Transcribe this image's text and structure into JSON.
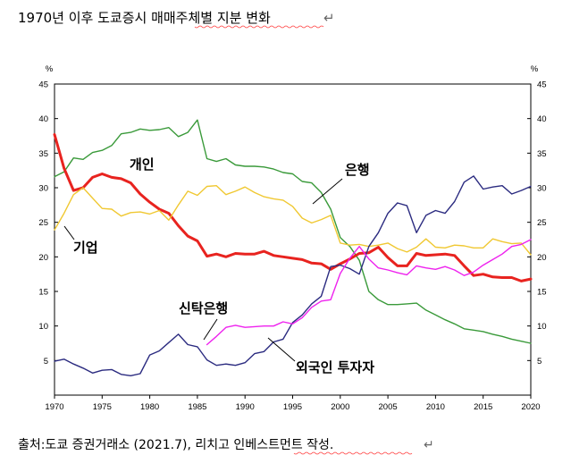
{
  "title": "1970년 이후 도쿄증시 매매주체별 지분 변화",
  "title_mark": "↵",
  "source": "출처:도쿄 증권거래소 (2021.7), 리치고 인베스트먼트 작성.",
  "source_mark": "↵",
  "chart_data": {
    "type": "line",
    "title": "1970년 이후 도쿄증시 매매주체별 지분 변화",
    "xlabel": "",
    "ylabel": "%",
    "y_unit_left": "%",
    "y_unit_right": "%",
    "xlim": [
      1970,
      2020
    ],
    "ylim": [
      0,
      45
    ],
    "x_ticks": [
      1970,
      1975,
      1980,
      1985,
      1990,
      1995,
      2000,
      2005,
      2010,
      2015,
      2020
    ],
    "y_ticks_left": [
      5,
      10,
      15,
      20,
      25,
      30,
      35,
      40,
      45
    ],
    "y_ticks_right": [
      5,
      10,
      15,
      20,
      25,
      30,
      35,
      40,
      45
    ],
    "series": [
      {
        "name": "은행",
        "color": "#3a9a3a",
        "width": 1.4,
        "x": [
          1970,
          1971,
          1972,
          1973,
          1974,
          1975,
          1976,
          1977,
          1978,
          1979,
          1980,
          1981,
          1982,
          1983,
          1984,
          1985,
          1986,
          1987,
          1988,
          1989,
          1990,
          1991,
          1992,
          1993,
          1994,
          1995,
          1996,
          1997,
          1998,
          1999,
          2000,
          2001,
          2002,
          2003,
          2004,
          2005,
          2006,
          2007,
          2008,
          2009,
          2010,
          2011,
          2012,
          2013,
          2014,
          2015,
          2016,
          2017,
          2018,
          2019,
          2020
        ],
        "values": [
          31.6,
          32.3,
          34.3,
          34.1,
          35.1,
          35.4,
          36.1,
          37.8,
          38.0,
          38.5,
          38.3,
          38.4,
          38.7,
          37.4,
          38.0,
          39.8,
          34.2,
          33.8,
          34.2,
          33.3,
          33.1,
          33.1,
          33.0,
          32.7,
          32.2,
          32.0,
          30.9,
          30.7,
          29.3,
          26.9,
          22.8,
          21.5,
          19.5,
          15.0,
          13.8,
          13.1,
          13.1,
          13.2,
          13.3,
          12.3,
          11.6,
          10.9,
          10.3,
          9.6,
          9.4,
          9.2,
          8.8,
          8.5,
          8.1,
          7.8,
          7.5
        ]
      },
      {
        "name": "개인",
        "color": "#e8231f",
        "width": 3.0,
        "x": [
          1970,
          1971,
          1972,
          1973,
          1974,
          1975,
          1976,
          1977,
          1978,
          1979,
          1980,
          1981,
          1982,
          1983,
          1984,
          1985,
          1986,
          1987,
          1988,
          1989,
          1990,
          1991,
          1992,
          1993,
          1994,
          1995,
          1996,
          1997,
          1998,
          1999,
          2000,
          2001,
          2002,
          2003,
          2004,
          2005,
          2006,
          2007,
          2008,
          2009,
          2010,
          2011,
          2012,
          2013,
          2014,
          2015,
          2016,
          2017,
          2018,
          2019,
          2020
        ],
        "values": [
          37.7,
          32.8,
          29.6,
          30.0,
          31.5,
          32.0,
          31.5,
          31.3,
          30.7,
          29.1,
          27.9,
          26.9,
          26.3,
          24.5,
          23.0,
          22.3,
          20.1,
          20.4,
          20.0,
          20.5,
          20.4,
          20.4,
          20.8,
          20.2,
          20.0,
          19.8,
          19.6,
          19.1,
          19.0,
          18.2,
          19.0,
          19.7,
          20.5,
          20.6,
          21.4,
          19.9,
          18.7,
          18.7,
          20.5,
          20.2,
          20.3,
          20.4,
          20.2,
          18.7,
          17.3,
          17.5,
          17.1,
          17.0,
          17.0,
          16.5,
          16.8
        ]
      },
      {
        "name": "기업",
        "color": "#f0c832",
        "width": 1.4,
        "x": [
          1970,
          1971,
          1972,
          1973,
          1974,
          1975,
          1976,
          1977,
          1978,
          1979,
          1980,
          1981,
          1982,
          1983,
          1984,
          1985,
          1986,
          1987,
          1988,
          1989,
          1990,
          1991,
          1992,
          1993,
          1994,
          1995,
          1996,
          1997,
          1998,
          1999,
          2000,
          2001,
          2002,
          2003,
          2004,
          2005,
          2006,
          2007,
          2008,
          2009,
          2010,
          2011,
          2012,
          2013,
          2014,
          2015,
          2016,
          2017,
          2018,
          2019,
          2020
        ],
        "values": [
          23.9,
          26.3,
          29.0,
          30.0,
          28.5,
          27.0,
          26.9,
          25.9,
          26.4,
          26.5,
          26.2,
          26.7,
          25.3,
          27.5,
          29.5,
          28.9,
          30.2,
          30.3,
          29.0,
          29.5,
          30.1,
          29.3,
          28.7,
          28.4,
          28.2,
          27.3,
          25.6,
          24.9,
          25.4,
          26.0,
          22.0,
          21.7,
          21.8,
          21.5,
          21.7,
          22.0,
          21.2,
          20.7,
          21.4,
          22.6,
          21.4,
          21.3,
          21.7,
          21.6,
          21.3,
          21.3,
          22.6,
          22.2,
          21.9,
          22.0,
          20.3
        ]
      },
      {
        "name": "외국인 투자자",
        "color": "#2b2b80",
        "width": 1.4,
        "x": [
          1970,
          1971,
          1972,
          1973,
          1974,
          1975,
          1976,
          1977,
          1978,
          1979,
          1980,
          1981,
          1982,
          1983,
          1984,
          1985,
          1986,
          1987,
          1988,
          1989,
          1990,
          1991,
          1992,
          1993,
          1994,
          1995,
          1996,
          1997,
          1998,
          1999,
          2000,
          2001,
          2002,
          2003,
          2004,
          2005,
          2006,
          2007,
          2008,
          2009,
          2010,
          2011,
          2012,
          2013,
          2014,
          2015,
          2016,
          2017,
          2018,
          2019,
          2020
        ],
        "values": [
          4.9,
          5.2,
          4.5,
          3.9,
          3.2,
          3.6,
          3.7,
          3.0,
          2.8,
          3.1,
          5.8,
          6.4,
          7.6,
          8.8,
          7.3,
          7.0,
          5.1,
          4.3,
          4.5,
          4.3,
          4.7,
          6.0,
          6.3,
          7.7,
          8.1,
          10.5,
          11.6,
          13.2,
          14.3,
          18.6,
          18.8,
          18.3,
          17.5,
          21.5,
          23.5,
          26.3,
          27.8,
          27.4,
          23.5,
          26.0,
          26.7,
          26.3,
          28.0,
          30.8,
          31.7,
          29.8,
          30.1,
          30.3,
          29.1,
          29.6,
          30.2
        ]
      },
      {
        "name": "신탁은행",
        "color": "#ee22ee",
        "width": 1.4,
        "x": [
          1986,
          1987,
          1988,
          1989,
          1990,
          1991,
          1992,
          1993,
          1994,
          1995,
          1996,
          1997,
          1998,
          1999,
          2000,
          2001,
          2002,
          2003,
          2004,
          2005,
          2006,
          2007,
          2008,
          2009,
          2010,
          2011,
          2012,
          2013,
          2014,
          2015,
          2016,
          2017,
          2018,
          2019,
          2020
        ],
        "values": [
          7.3,
          8.5,
          9.8,
          10.1,
          9.8,
          9.9,
          10.0,
          10.0,
          10.6,
          10.3,
          11.2,
          12.7,
          13.6,
          13.8,
          17.6,
          19.8,
          21.5,
          19.7,
          18.4,
          18.1,
          17.7,
          17.4,
          18.7,
          18.4,
          18.2,
          18.6,
          18.1,
          17.3,
          17.8,
          18.8,
          19.6,
          20.4,
          21.5,
          21.8,
          22.5
        ]
      }
    ],
    "annotations": [
      {
        "text": "개인",
        "points_to": "개인"
      },
      {
        "text": "은행",
        "points_to": "은행"
      },
      {
        "text": "기업",
        "points_to": "기업"
      },
      {
        "text": "신탁은행",
        "points_to": "신탁은행"
      },
      {
        "text": "외국인 투자자",
        "points_to": "외국인 투자자"
      }
    ]
  }
}
